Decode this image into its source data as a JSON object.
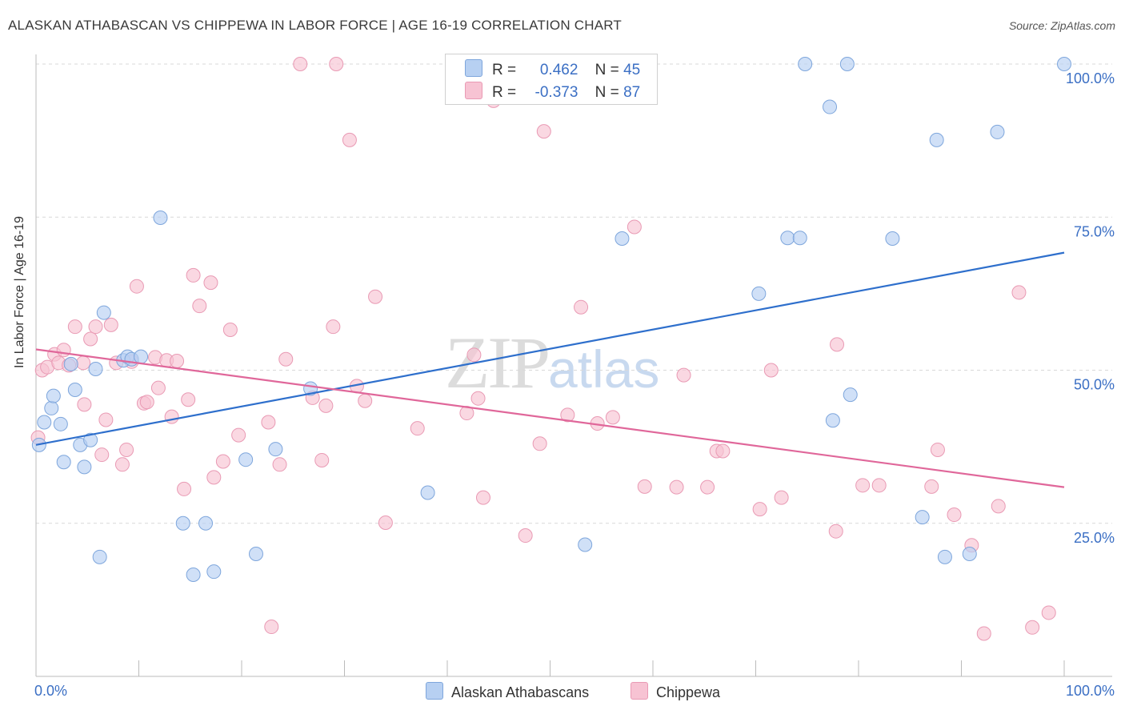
{
  "title": "ALASKAN ATHABASCAN VS CHIPPEWA IN LABOR FORCE | AGE 16-19 CORRELATION CHART",
  "source": "Source: ZipAtlas.com",
  "watermark": {
    "zip": "ZIP",
    "atlas": "atlas"
  },
  "legend": {
    "r_label": "R =",
    "n_label": "N =",
    "rows": [
      {
        "r": "0.462",
        "n": "45"
      },
      {
        "r": "-0.373",
        "n": "87"
      }
    ]
  },
  "colors": {
    "blue_fill": "#b7d0f2",
    "blue_stroke": "#7ea6dc",
    "blue_line": "#2e6fcc",
    "pink_fill": "#f7c3d3",
    "pink_stroke": "#e99ab4",
    "pink_line": "#e0679a",
    "grid": "#d9d9d9",
    "tick_label": "#3b6fc4"
  },
  "chart_data": {
    "type": "scatter",
    "xlabel": "",
    "ylabel": "In Labor Force | Age 16-19",
    "xlim": [
      0,
      100
    ],
    "ylim": [
      0,
      100
    ],
    "x_tick_labels": [
      "0.0%",
      "100.0%"
    ],
    "y_ticks": [
      25,
      50,
      75,
      100
    ],
    "y_tick_labels": [
      "25.0%",
      "50.0%",
      "75.0%",
      "100.0%"
    ],
    "grid": true,
    "legend_position": "top-center",
    "series": [
      {
        "name": "Alaskan Athabascans",
        "trend": [
          [
            0,
            37.8
          ],
          [
            100,
            69.2
          ]
        ],
        "points": [
          [
            0.3,
            37.8
          ],
          [
            0.8,
            41.5
          ],
          [
            1.5,
            43.8
          ],
          [
            1.7,
            45.8
          ],
          [
            2.4,
            41.2
          ],
          [
            2.7,
            35.0
          ],
          [
            3.4,
            51.0
          ],
          [
            3.8,
            46.8
          ],
          [
            4.3,
            37.8
          ],
          [
            4.7,
            34.2
          ],
          [
            5.3,
            38.6
          ],
          [
            5.8,
            50.2
          ],
          [
            6.2,
            19.5
          ],
          [
            6.6,
            59.4
          ],
          [
            8.5,
            51.6
          ],
          [
            8.9,
            52.2
          ],
          [
            9.3,
            51.8
          ],
          [
            10.2,
            52.2
          ],
          [
            12.1,
            74.9
          ],
          [
            14.3,
            25.0
          ],
          [
            15.3,
            16.6
          ],
          [
            16.5,
            25.0
          ],
          [
            17.3,
            17.1
          ],
          [
            20.4,
            35.4
          ],
          [
            21.4,
            20.0
          ],
          [
            23.3,
            37.1
          ],
          [
            26.7,
            47.0
          ],
          [
            38.1,
            30.0
          ],
          [
            53.4,
            21.5
          ],
          [
            57.0,
            71.5
          ],
          [
            70.3,
            62.5
          ],
          [
            73.1,
            71.6
          ],
          [
            74.3,
            71.6
          ],
          [
            74.8,
            100.0
          ],
          [
            77.2,
            93.0
          ],
          [
            77.5,
            41.8
          ],
          [
            78.9,
            100.0
          ],
          [
            79.2,
            46.0
          ],
          [
            83.3,
            71.5
          ],
          [
            86.2,
            26.0
          ],
          [
            87.6,
            87.6
          ],
          [
            88.4,
            19.5
          ],
          [
            90.8,
            20.0
          ],
          [
            93.5,
            88.9
          ],
          [
            100.0,
            100.0
          ]
        ]
      },
      {
        "name": "Chippewa",
        "trend": [
          [
            0,
            53.4
          ],
          [
            100,
            30.9
          ]
        ],
        "points": [
          [
            0.2,
            39.0
          ],
          [
            0.6,
            50.0
          ],
          [
            1.1,
            50.5
          ],
          [
            1.8,
            52.6
          ],
          [
            2.2,
            51.2
          ],
          [
            2.7,
            53.3
          ],
          [
            3.2,
            50.8
          ],
          [
            3.8,
            57.1
          ],
          [
            4.6,
            51.2
          ],
          [
            4.7,
            44.4
          ],
          [
            5.3,
            55.1
          ],
          [
            5.8,
            57.1
          ],
          [
            6.4,
            36.2
          ],
          [
            6.8,
            41.9
          ],
          [
            7.3,
            57.4
          ],
          [
            7.8,
            51.2
          ],
          [
            8.4,
            34.6
          ],
          [
            8.8,
            37.0
          ],
          [
            9.3,
            51.4
          ],
          [
            9.8,
            63.7
          ],
          [
            10.5,
            44.6
          ],
          [
            10.8,
            44.8
          ],
          [
            11.6,
            52.1
          ],
          [
            11.9,
            47.1
          ],
          [
            12.7,
            51.6
          ],
          [
            13.2,
            42.4
          ],
          [
            13.7,
            51.5
          ],
          [
            14.4,
            30.6
          ],
          [
            14.8,
            45.2
          ],
          [
            15.3,
            65.5
          ],
          [
            15.9,
            60.5
          ],
          [
            17.0,
            64.3
          ],
          [
            17.3,
            32.5
          ],
          [
            18.2,
            35.1
          ],
          [
            18.9,
            56.6
          ],
          [
            19.7,
            39.4
          ],
          [
            22.6,
            41.5
          ],
          [
            22.9,
            8.1
          ],
          [
            23.7,
            34.6
          ],
          [
            24.3,
            51.8
          ],
          [
            25.7,
            100.0
          ],
          [
            26.9,
            45.5
          ],
          [
            27.8,
            35.3
          ],
          [
            28.2,
            44.2
          ],
          [
            28.9,
            57.1
          ],
          [
            29.2,
            100.0
          ],
          [
            30.5,
            87.6
          ],
          [
            31.2,
            47.4
          ],
          [
            32.0,
            45.0
          ],
          [
            33.0,
            62.0
          ],
          [
            34.0,
            25.1
          ],
          [
            37.1,
            40.5
          ],
          [
            41.9,
            43.0
          ],
          [
            42.6,
            52.5
          ],
          [
            43.0,
            45.4
          ],
          [
            43.5,
            29.2
          ],
          [
            44.5,
            94.0
          ],
          [
            47.6,
            23.0
          ],
          [
            49.0,
            38.0
          ],
          [
            49.4,
            89.0
          ],
          [
            51.7,
            42.7
          ],
          [
            53.0,
            60.3
          ],
          [
            54.6,
            41.3
          ],
          [
            56.1,
            42.3
          ],
          [
            58.2,
            73.4
          ],
          [
            59.2,
            31.0
          ],
          [
            62.3,
            30.9
          ],
          [
            63.0,
            49.2
          ],
          [
            65.3,
            30.9
          ],
          [
            66.2,
            36.8
          ],
          [
            66.8,
            36.8
          ],
          [
            70.4,
            27.3
          ],
          [
            71.5,
            50.0
          ],
          [
            72.5,
            29.2
          ],
          [
            77.8,
            23.7
          ],
          [
            77.9,
            54.2
          ],
          [
            80.4,
            31.2
          ],
          [
            82.0,
            31.2
          ],
          [
            87.1,
            31.0
          ],
          [
            87.7,
            37.0
          ],
          [
            89.3,
            26.4
          ],
          [
            91.0,
            21.4
          ],
          [
            92.2,
            7.0
          ],
          [
            93.6,
            27.8
          ],
          [
            95.6,
            62.7
          ],
          [
            96.9,
            8.0
          ],
          [
            98.5,
            10.4
          ]
        ]
      }
    ]
  },
  "bottom_legend": [
    "Alaskan Athabascans",
    "Chippewa"
  ]
}
